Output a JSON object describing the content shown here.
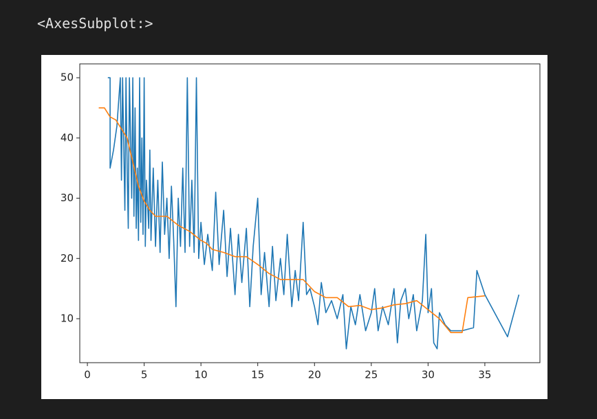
{
  "output_label": "<AxesSubplot:>",
  "chart_data": {
    "type": "line",
    "xlim": [
      -0.67,
      39.85
    ],
    "ylim": [
      2.7,
      52.3
    ],
    "xticks": [
      0,
      5,
      10,
      15,
      20,
      25,
      30,
      35
    ],
    "yticks": [
      10,
      20,
      30,
      40,
      50
    ],
    "series": [
      {
        "color": "#1f77b4",
        "x": [
          1.8,
          2.0,
          2.0,
          2.3,
          2.6,
          2.9,
          3.0,
          3.1,
          3.3,
          3.4,
          3.5,
          3.6,
          3.7,
          3.8,
          3.9,
          4.0,
          4.1,
          4.2,
          4.3,
          4.4,
          4.5,
          4.6,
          4.7,
          4.8,
          4.9,
          5.0,
          5.1,
          5.2,
          5.4,
          5.5,
          5.6,
          5.8,
          6.0,
          6.2,
          6.4,
          6.6,
          6.8,
          7.0,
          7.2,
          7.4,
          7.6,
          7.8,
          8.0,
          8.2,
          8.4,
          8.6,
          8.8,
          9.0,
          9.2,
          9.4,
          9.6,
          9.8,
          10.0,
          10.3,
          10.6,
          11.0,
          11.3,
          11.6,
          12.0,
          12.3,
          12.6,
          13.0,
          13.3,
          13.6,
          14.0,
          14.3,
          14.6,
          15.0,
          15.3,
          15.6,
          16.0,
          16.3,
          16.6,
          17.0,
          17.3,
          17.6,
          18.0,
          18.3,
          18.6,
          19.0,
          19.3,
          19.6,
          20.0,
          20.3,
          20.6,
          21.0,
          21.5,
          22.0,
          22.5,
          22.8,
          23.2,
          23.6,
          24.0,
          24.5,
          25.0,
          25.3,
          25.6,
          26.0,
          26.5,
          27.0,
          27.3,
          27.6,
          28.0,
          28.3,
          28.7,
          29.0,
          29.5,
          29.8,
          30.0,
          30.3,
          30.5,
          30.8,
          31.0,
          31.5,
          32.0,
          33.0,
          34.0,
          34.3,
          35.0,
          37.0,
          38.0
        ],
        "values": [
          50,
          50,
          35,
          38,
          42,
          50,
          33,
          50,
          28,
          50,
          35,
          25,
          50,
          40,
          30,
          50,
          27,
          45,
          25,
          35,
          23,
          50,
          26,
          40,
          24,
          50,
          22,
          33,
          25,
          38,
          23,
          35,
          22,
          33,
          21,
          36,
          24,
          30,
          20,
          32,
          23,
          12,
          30,
          22,
          35,
          21,
          50,
          22,
          33,
          21,
          50,
          20,
          26,
          19,
          24,
          18,
          31,
          19,
          28,
          17,
          25,
          14,
          24,
          16,
          25,
          12,
          22,
          30,
          14,
          21,
          12,
          22,
          13,
          20,
          14,
          24,
          12,
          18,
          13,
          26,
          14,
          15,
          12,
          9,
          16,
          11,
          13,
          10,
          14,
          5,
          12,
          9,
          14,
          8,
          11,
          15,
          8,
          12,
          9,
          15,
          6,
          13,
          15,
          10,
          14,
          8,
          13,
          24,
          11,
          15,
          6,
          5,
          11,
          9,
          8,
          8,
          8.5,
          18,
          14,
          7,
          14
        ]
      },
      {
        "color": "#ff7f0e",
        "x": [
          1,
          1.5,
          2,
          2.5,
          3,
          3.5,
          4,
          4.5,
          5,
          5.5,
          6,
          7,
          8,
          9,
          10,
          10.5,
          11,
          12,
          13,
          14,
          15,
          16,
          17,
          18,
          19,
          20,
          21,
          22,
          23,
          24,
          25,
          26,
          27,
          28,
          29,
          30,
          31,
          32,
          33,
          33.5,
          35
        ],
        "values": [
          45,
          45,
          43.5,
          43,
          41.5,
          40,
          36,
          32,
          29.5,
          28,
          27,
          27,
          25.5,
          24.5,
          23,
          22.5,
          21.5,
          21,
          20.3,
          20.3,
          19,
          17.5,
          16.5,
          16.5,
          16.5,
          14.5,
          13.5,
          13.5,
          12,
          12.2,
          11.5,
          11.8,
          12.3,
          12.5,
          13,
          11.5,
          10,
          7.7,
          7.7,
          13.5,
          13.8
        ]
      }
    ]
  }
}
